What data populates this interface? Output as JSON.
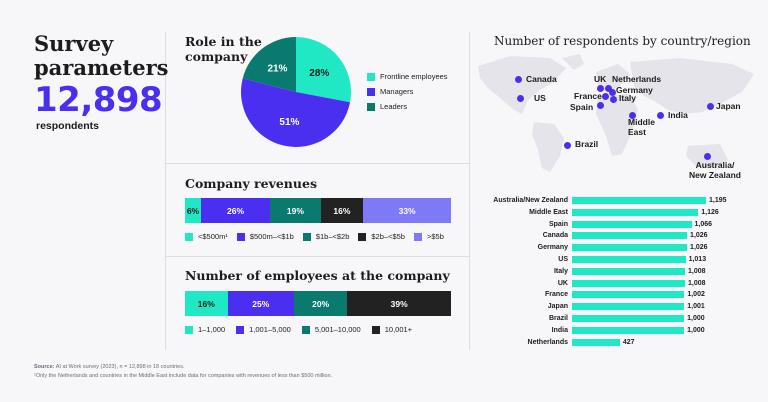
{
  "survey": {
    "title_line1": "Survey",
    "title_line2": "parameters",
    "total": "12,898",
    "total_label": "respondents"
  },
  "colors": {
    "frontline": "#20e8c4",
    "managers": "#4b2ff0",
    "leaders": "#0a7a6e",
    "teal": "#20e8c4",
    "purple": "#4b2ff0",
    "dark": "#222222",
    "lavender": "#7e79f5"
  },
  "role": {
    "title_line1": "Role in the",
    "title_line2": "company",
    "legend": [
      "Frontline employees",
      "Managers",
      "Leaders"
    ]
  },
  "revenues": {
    "title": "Company revenues",
    "legend": [
      "<$500m¹",
      "$500m–<$1b",
      "$1b–<$2b",
      "$2b–<$5b",
      ">$5b"
    ]
  },
  "employees": {
    "title": "Number of employees at the company",
    "legend": [
      "1–1,000",
      "1,001–5,000",
      "5,001–10,000",
      "10,001+"
    ]
  },
  "map": {
    "title": "Number of respondents by country/region",
    "labels": [
      "Canada",
      "US",
      "UK",
      "Netherlands",
      "Germany",
      "France",
      "Italy",
      "Spain",
      "Middle East",
      "India",
      "Japan",
      "Brazil",
      "Australia/ New Zealand"
    ]
  },
  "chart_data": [
    {
      "type": "pie",
      "title": "Role in the company",
      "categories": [
        "Frontline employees",
        "Managers",
        "Leaders"
      ],
      "values": [
        28,
        51,
        21
      ],
      "labels": [
        "28%",
        "51%",
        "21%"
      ],
      "unit": "%"
    },
    {
      "type": "bar",
      "orientation": "stacked-horizontal",
      "title": "Company revenues",
      "categories": [
        "<$500m¹",
        "$500m–<$1b",
        "$1b–<$2b",
        "$2b–<$5b",
        ">$5b"
      ],
      "values": [
        6,
        26,
        19,
        16,
        33
      ],
      "labels": [
        "6%",
        "26%",
        "19%",
        "16%",
        "33%"
      ],
      "unit": "%"
    },
    {
      "type": "bar",
      "orientation": "stacked-horizontal",
      "title": "Number of employees at the company",
      "categories": [
        "1–1,000",
        "1,001–5,000",
        "5,001–10,000",
        "10,001+"
      ],
      "values": [
        16,
        25,
        20,
        39
      ],
      "labels": [
        "16%",
        "25%",
        "20%",
        "39%"
      ],
      "unit": "%"
    },
    {
      "type": "bar",
      "orientation": "horizontal",
      "title": "Number of respondents by country/region",
      "categories": [
        "Australia/New Zealand",
        "Middle East",
        "Spain",
        "Canada",
        "Germany",
        "US",
        "Italy",
        "UK",
        "France",
        "Japan",
        "Brazil",
        "India",
        "Netherlands"
      ],
      "values": [
        1195,
        1126,
        1066,
        1026,
        1026,
        1013,
        1008,
        1008,
        1002,
        1001,
        1000,
        1000,
        427
      ],
      "labels": [
        "1,195",
        "1,126",
        "1,066",
        "1,026",
        "1,026",
        "1,013",
        "1,008",
        "1,008",
        "1,002",
        "1,001",
        "1,000",
        "1,000",
        "427"
      ]
    }
  ],
  "footer": {
    "source_label": "Source:",
    "source_text": "AI at Work survey (2023), n = 12,898 in 18 countries.",
    "note": "¹Only the Netherlands and countries in the Middle East include data for companies with revenues of less than $500 million."
  }
}
